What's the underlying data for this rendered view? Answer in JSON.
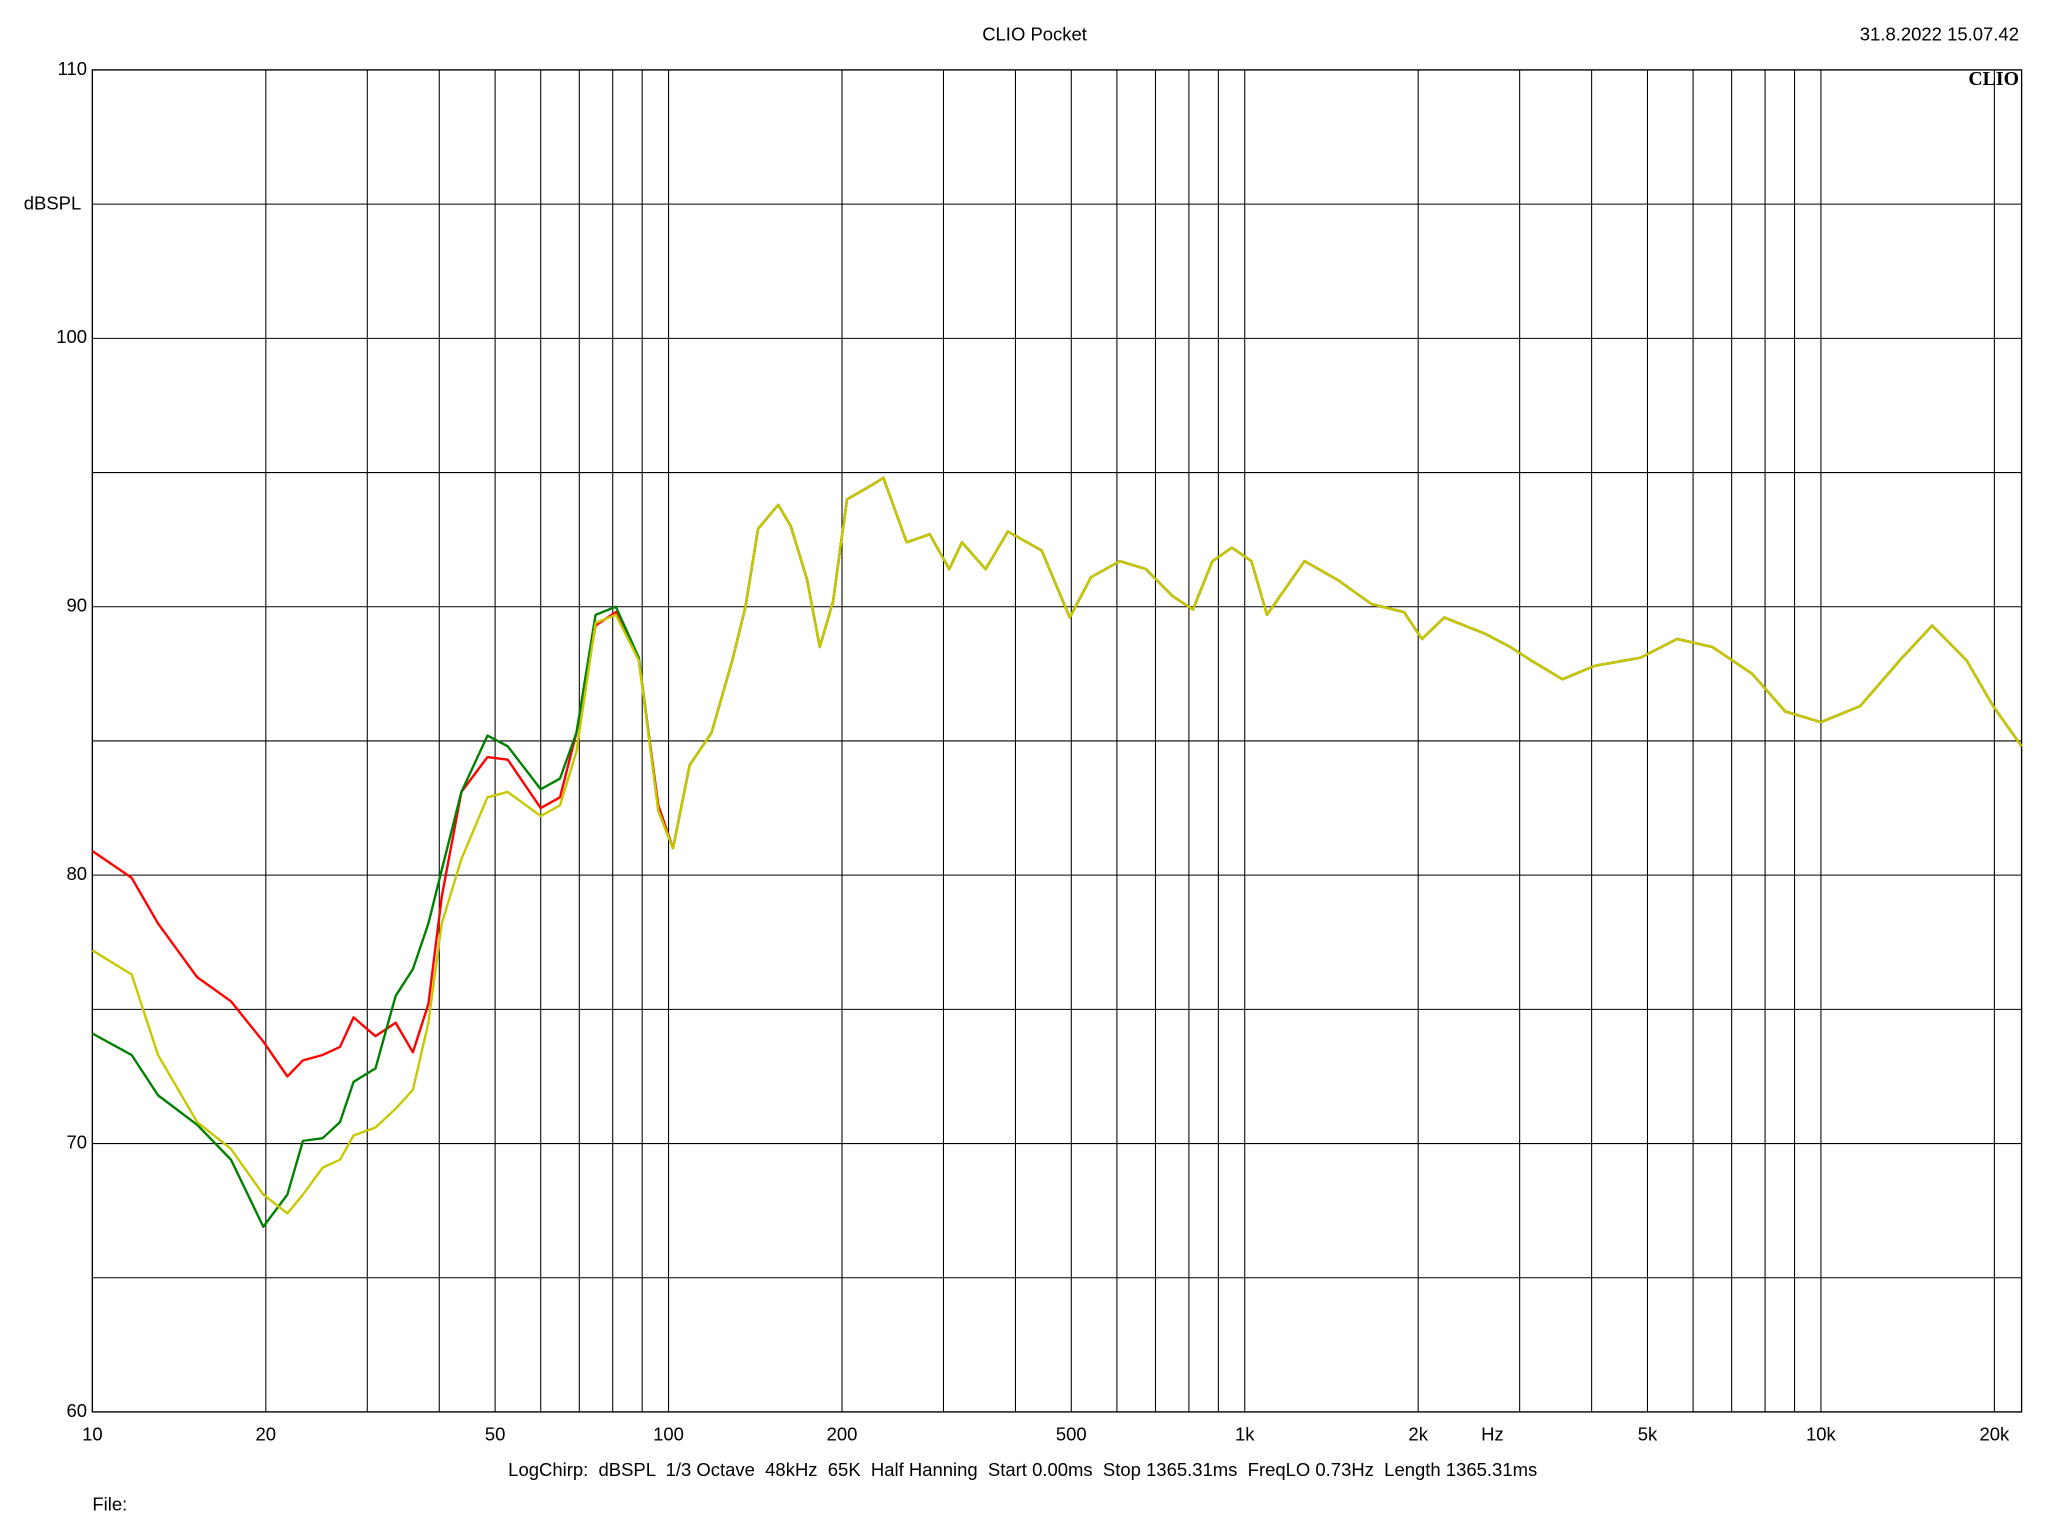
{
  "chart_data": {
    "type": "line",
    "title": "CLIO Pocket",
    "timestamp": "31.8.2022 15.07.42",
    "logo": "CLIO",
    "y_label": "dBSPL",
    "x_unit": "Hz",
    "info": "LogChirp:  dBSPL  1/3 Octave  48kHz  65K  Half Hanning  Start 0.00ms  Stop 1365.31ms  FreqLO 0.73Hz  Length 1365.31ms",
    "file_label": "File:",
    "x_scale": "log",
    "grid": true,
    "xlim": [
      10,
      22300
    ],
    "ylim": [
      60,
      110
    ],
    "yticks": [
      60,
      70,
      80,
      90,
      100,
      110
    ],
    "minor_yticks": [
      65,
      75,
      85,
      95,
      105
    ],
    "xticks": [
      10,
      20,
      50,
      100,
      200,
      500,
      {
        "value": 1000,
        "label": "1k"
      },
      {
        "value": 2000,
        "label": "2k"
      },
      {
        "value": 5000,
        "label": "5k"
      },
      {
        "value": 10000,
        "label": "10k"
      },
      {
        "value": 20000,
        "label": "20k"
      }
    ],
    "minor_xticks": [
      30,
      40,
      60,
      70,
      80,
      90,
      300,
      400,
      600,
      700,
      800,
      900,
      3000,
      4000,
      6000,
      7000,
      8000,
      9000
    ],
    "x": [
      10,
      11.7,
      13,
      15.2,
      17.4,
      19.8,
      21.8,
      23.2,
      25.1,
      26.9,
      28.4,
      31,
      33.6,
      36,
      38.3,
      40.4,
      43.7,
      48.5,
      52.6,
      60,
      64.8,
      69.2,
      74.7,
      81,
      88.8,
      96,
      101.8,
      108.8,
      118.7,
      129,
      136,
      143,
      155,
      163,
      174,
      183,
      193,
      204,
      224,
      236,
      259,
      284,
      307,
      323,
      355,
      388,
      444,
      497,
      541,
      607,
      674,
      749,
      813,
      879,
      950,
      1027,
      1093,
      1270,
      1450,
      1660,
      1890,
      2030,
      2220,
      2610,
      2890,
      3140,
      3560,
      4050,
      4860,
      5630,
      6480,
      7600,
      8670,
      10000,
      11700,
      13700,
      15600,
      17900,
      19900,
      22300
    ],
    "series": [
      {
        "name": "Red",
        "color": "#ff0000",
        "values": [
          80.9,
          79.9,
          78.2,
          76.2,
          75.3,
          73.8,
          72.5,
          73.1,
          73.3,
          73.6,
          74.7,
          74.0,
          74.5,
          73.4,
          75.2,
          79.2,
          83.1,
          84.4,
          84.3,
          82.5,
          82.9,
          85.3,
          89.3,
          89.8,
          88.0,
          82.6,
          81.0,
          84.1,
          85.3,
          88.0,
          90.0,
          92.9,
          93.8,
          93.0,
          91.0,
          88.5,
          90.2,
          94.0,
          94.5,
          94.8,
          92.4,
          92.7,
          91.4,
          92.4,
          91.4,
          92.8,
          92.1,
          89.6,
          91.1,
          91.7,
          91.4,
          90.4,
          89.9,
          91.7,
          92.2,
          91.7,
          89.7,
          91.7,
          91.0,
          90.1,
          89.8,
          88.8,
          89.6,
          89.0,
          88.5,
          88.0,
          87.3,
          87.8,
          88.1,
          88.8,
          88.5,
          87.5,
          86.1,
          85.7,
          86.3,
          88.0,
          89.3,
          88.0,
          86.3,
          84.8
        ]
      },
      {
        "name": "Green",
        "color": "#008000",
        "values": [
          74.1,
          73.3,
          71.8,
          70.7,
          69.4,
          66.9,
          68.1,
          70.1,
          70.2,
          70.8,
          72.3,
          72.8,
          75.5,
          76.5,
          78.2,
          80.2,
          83.1,
          85.2,
          84.8,
          83.2,
          83.6,
          85.3,
          89.7,
          90.0,
          88.1,
          82.4,
          81.0,
          84.1,
          85.3,
          88.0,
          90.0,
          92.9,
          93.8,
          93.0,
          91.0,
          88.5,
          90.2,
          94.0,
          94.5,
          94.8,
          92.4,
          92.7,
          91.4,
          92.4,
          91.4,
          92.8,
          92.1,
          89.6,
          91.1,
          91.7,
          91.4,
          90.4,
          89.9,
          91.7,
          92.2,
          91.7,
          89.7,
          91.7,
          91.0,
          90.1,
          89.8,
          88.8,
          89.6,
          89.0,
          88.5,
          88.0,
          87.3,
          87.8,
          88.1,
          88.8,
          88.5,
          87.5,
          86.1,
          85.7,
          86.3,
          88.0,
          89.3,
          88.0,
          86.3,
          84.8
        ]
      },
      {
        "name": "Yellow",
        "color": "#c8c800",
        "values": [
          77.2,
          76.3,
          73.3,
          70.8,
          69.8,
          68.1,
          67.4,
          68.1,
          69.1,
          69.4,
          70.3,
          70.6,
          71.3,
          72.0,
          74.5,
          78.2,
          80.6,
          82.9,
          83.1,
          82.2,
          82.6,
          84.6,
          89.4,
          89.7,
          88.0,
          82.4,
          81.0,
          84.1,
          85.3,
          88.0,
          90.0,
          92.9,
          93.8,
          93.0,
          91.0,
          88.5,
          90.2,
          94.0,
          94.5,
          94.8,
          92.4,
          92.7,
          91.4,
          92.4,
          91.4,
          92.8,
          92.1,
          89.6,
          91.1,
          91.7,
          91.4,
          90.4,
          89.9,
          91.7,
          92.2,
          91.7,
          89.7,
          91.7,
          91.0,
          90.1,
          89.8,
          88.8,
          89.6,
          89.0,
          88.5,
          88.0,
          87.3,
          87.8,
          88.1,
          88.8,
          88.5,
          87.5,
          86.1,
          85.7,
          86.3,
          88.0,
          89.3,
          88.0,
          86.3,
          84.8
        ]
      }
    ]
  }
}
